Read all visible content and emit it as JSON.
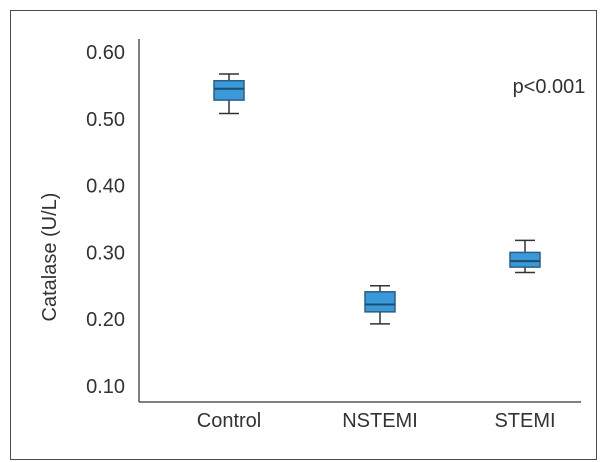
{
  "chart_data": {
    "type": "box",
    "ylabel": "Catalase (U/L)",
    "xlabel": "",
    "ylim": [
      0.08,
      0.62
    ],
    "yticks": [
      "0.10",
      "0.20",
      "0.30",
      "0.40",
      "0.50",
      "0.60"
    ],
    "categories": [
      "Control",
      "NSTEMI",
      "STEMI"
    ],
    "boxes": [
      {
        "label": "Control",
        "min": 0.508,
        "q1": 0.528,
        "median": 0.545,
        "q3": 0.557,
        "max": 0.567
      },
      {
        "label": "NSTEMI",
        "min": 0.193,
        "q1": 0.211,
        "median": 0.222,
        "q3": 0.241,
        "max": 0.25
      },
      {
        "label": "STEMI",
        "min": 0.27,
        "q1": 0.278,
        "median": 0.287,
        "q3": 0.3,
        "max": 0.318
      }
    ],
    "annotation": "p<0.001",
    "box_color": "#3a9ad9",
    "box_edge_color": "#2a5f85",
    "axis_color": "#555555",
    "grid": false
  }
}
